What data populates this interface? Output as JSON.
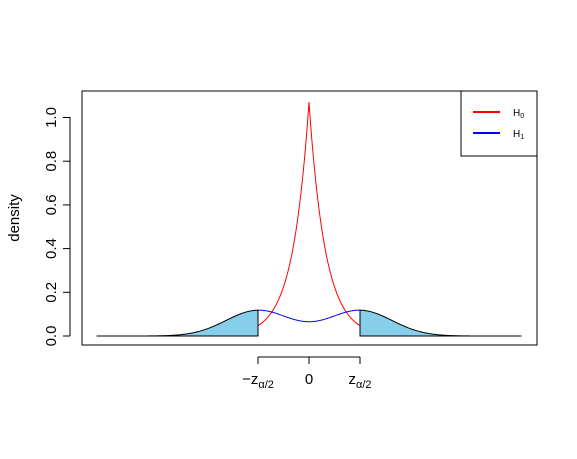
{
  "chart_data": {
    "type": "area",
    "title": "",
    "xlabel": "",
    "ylabel": "density",
    "ylim": [
      0,
      1.1
    ],
    "xlim": [
      -5.2,
      5.2
    ],
    "y_ticks": [
      "0.0",
      "0.2",
      "0.4",
      "0.6",
      "0.8",
      "1.0"
    ],
    "x_ticks": [
      {
        "value": -1.2,
        "main": "−z",
        "sub": "α/2"
      },
      {
        "value": 0,
        "main": "0",
        "sub": ""
      },
      {
        "value": 1.2,
        "main": "z",
        "sub": "α/2"
      }
    ],
    "critical_value": 1.2,
    "legend": {
      "placement": "top-right",
      "entries": [
        {
          "main": "H",
          "sub": "0",
          "color": "#ff0000"
        },
        {
          "main": "H",
          "sub": "1",
          "color": "#0000ff"
        }
      ]
    },
    "series": [
      {
        "key": "H0",
        "color": "#ff0000",
        "curve": "laplace",
        "peak": 1.07,
        "rate": 2.6,
        "x_range": [
          -1.2,
          1.2
        ]
      },
      {
        "key": "H1",
        "color": "#0000ff",
        "curve": "normal_mixture",
        "means": [
          -1.2,
          1.2
        ],
        "sd": 0.75,
        "peak": 0.235,
        "x_range": [
          -1.2,
          1.2
        ]
      },
      {
        "key": "H1_tails",
        "color": "#000000",
        "curve": "normal_mixture",
        "means": [
          -1.2,
          1.2
        ],
        "sd": 0.75,
        "peak": 0.235,
        "x_range": [
          -5.0,
          5.0
        ]
      }
    ],
    "shaded_regions": [
      {
        "from": -5.0,
        "to": -1.2,
        "fill": "#87ceeb"
      },
      {
        "from": 1.2,
        "to": 5.0,
        "fill": "#87ceeb"
      }
    ]
  }
}
